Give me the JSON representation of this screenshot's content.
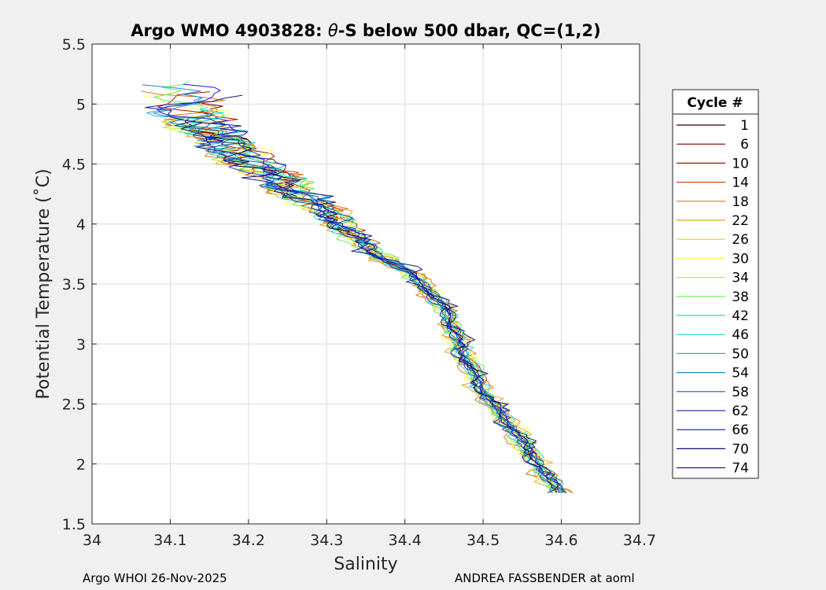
{
  "chart_data": {
    "type": "line",
    "title_prefix": "Argo WMO 4903828: ",
    "title_theta": "θ",
    "title_suffix": "-S below 500 dbar,  QC=(1,2)",
    "xlabel": "Salinity",
    "ylabel": "Potential Temperature (˚C)",
    "xlim": [
      34.0,
      34.7
    ],
    "ylim": [
      1.5,
      5.5
    ],
    "x_ticks": [
      "34",
      "34.1",
      "34.2",
      "34.3",
      "34.4",
      "34.5",
      "34.6",
      "34.7"
    ],
    "y_ticks": [
      "1.5",
      "2",
      "2.5",
      "3",
      "3.5",
      "4",
      "4.5",
      "5",
      "5.5"
    ],
    "grid": true,
    "legend_title": "Cycle #",
    "legend_position": "right",
    "core_curve": [
      [
        34.6,
        1.76
      ],
      [
        34.58,
        1.9
      ],
      [
        34.56,
        2.1
      ],
      [
        34.53,
        2.35
      ],
      [
        34.5,
        2.6
      ],
      [
        34.48,
        2.85
      ],
      [
        34.465,
        3.05
      ],
      [
        34.455,
        3.25
      ],
      [
        34.43,
        3.45
      ],
      [
        34.4,
        3.62
      ],
      [
        34.36,
        3.76
      ],
      [
        34.34,
        3.86
      ],
      [
        34.32,
        4.0
      ],
      [
        34.28,
        4.18
      ],
      [
        34.24,
        4.35
      ],
      [
        34.2,
        4.52
      ],
      [
        34.16,
        4.72
      ],
      [
        34.12,
        4.92
      ]
    ],
    "series": [
      {
        "name": "1",
        "color": "#3d0000"
      },
      {
        "name": "6",
        "color": "#7a0000"
      },
      {
        "name": "10",
        "color": "#b31000"
      },
      {
        "name": "14",
        "color": "#d44a12"
      },
      {
        "name": "18",
        "color": "#e0781a"
      },
      {
        "name": "22",
        "color": "#e3a21f"
      },
      {
        "name": "26",
        "color": "#e6d21f"
      },
      {
        "name": "30",
        "color": "#ffff55"
      },
      {
        "name": "34",
        "color": "#b4f23a"
      },
      {
        "name": "38",
        "color": "#66ee55"
      },
      {
        "name": "42",
        "color": "#33e0a0"
      },
      {
        "name": "46",
        "color": "#22d8d0"
      },
      {
        "name": "50",
        "color": "#19b2e0"
      },
      {
        "name": "54",
        "color": "#1a8cc8"
      },
      {
        "name": "58",
        "color": "#1a5eb0"
      },
      {
        "name": "62",
        "color": "#1d3fa6"
      },
      {
        "name": "66",
        "color": "#151f80"
      },
      {
        "name": "70",
        "color": "#0d0d78"
      },
      {
        "name": "74",
        "color": "#1a1ae0"
      }
    ]
  },
  "footer": {
    "left": "Argo WHOI 26-Nov-2025",
    "right": "ANDREA FASSBENDER at aoml"
  }
}
